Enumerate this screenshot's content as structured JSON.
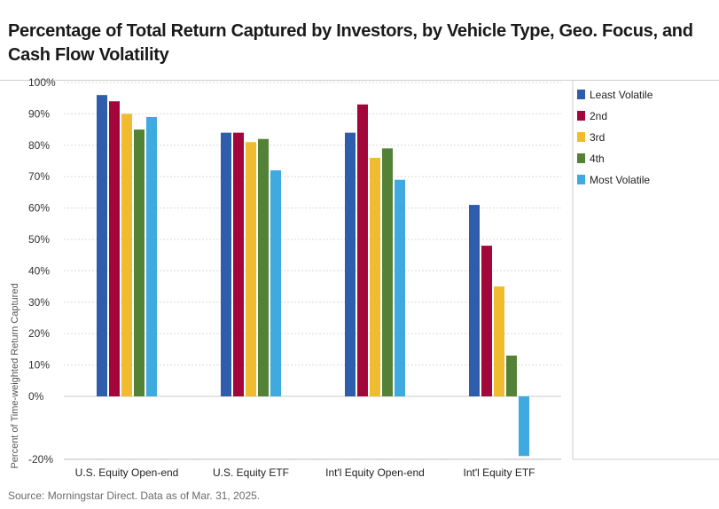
{
  "header": {
    "title": "Percentage of Total Return Captured by Investors, by Vehicle Type, Geo. Focus, and Cash Flow Volatility"
  },
  "footer": {
    "source": "Source: Morningstar Direct. Data as of Mar. 31, 2025."
  },
  "chart_data": {
    "type": "bar",
    "title": "Percentage of Total Return Captured by Investors, by Vehicle Type, Geo. Focus, and Cash Flow Volatility",
    "xlabel": "",
    "ylabel": "Percent of Time-weighted Return Captured",
    "ylim": [
      -20,
      100
    ],
    "yticks": [
      -20,
      0,
      10,
      20,
      30,
      40,
      50,
      60,
      70,
      80,
      90,
      100
    ],
    "ytick_labels": [
      "-20%",
      "0%",
      "10%",
      "20%",
      "30%",
      "40%",
      "50%",
      "60%",
      "70%",
      "80%",
      "90%",
      "100%"
    ],
    "grid": true,
    "legend_position": "right",
    "categories": [
      "U.S. Equity Open-end",
      "U.S. Equity ETF",
      "Int'l Equity Open-end",
      "Int'l Equity ETF"
    ],
    "series": [
      {
        "name": "Least Volatile",
        "color": "#2e5eab",
        "values": [
          96,
          84,
          84,
          61
        ]
      },
      {
        "name": "2nd",
        "color": "#a3063a",
        "values": [
          94,
          84,
          93,
          48
        ]
      },
      {
        "name": "3rd",
        "color": "#f0bb2e",
        "values": [
          90,
          81,
          76,
          35
        ]
      },
      {
        "name": "4th",
        "color": "#538135",
        "values": [
          85,
          82,
          79,
          13
        ]
      },
      {
        "name": "Most Volatile",
        "color": "#3eaadf",
        "values": [
          89,
          72,
          69,
          -19
        ]
      }
    ]
  }
}
